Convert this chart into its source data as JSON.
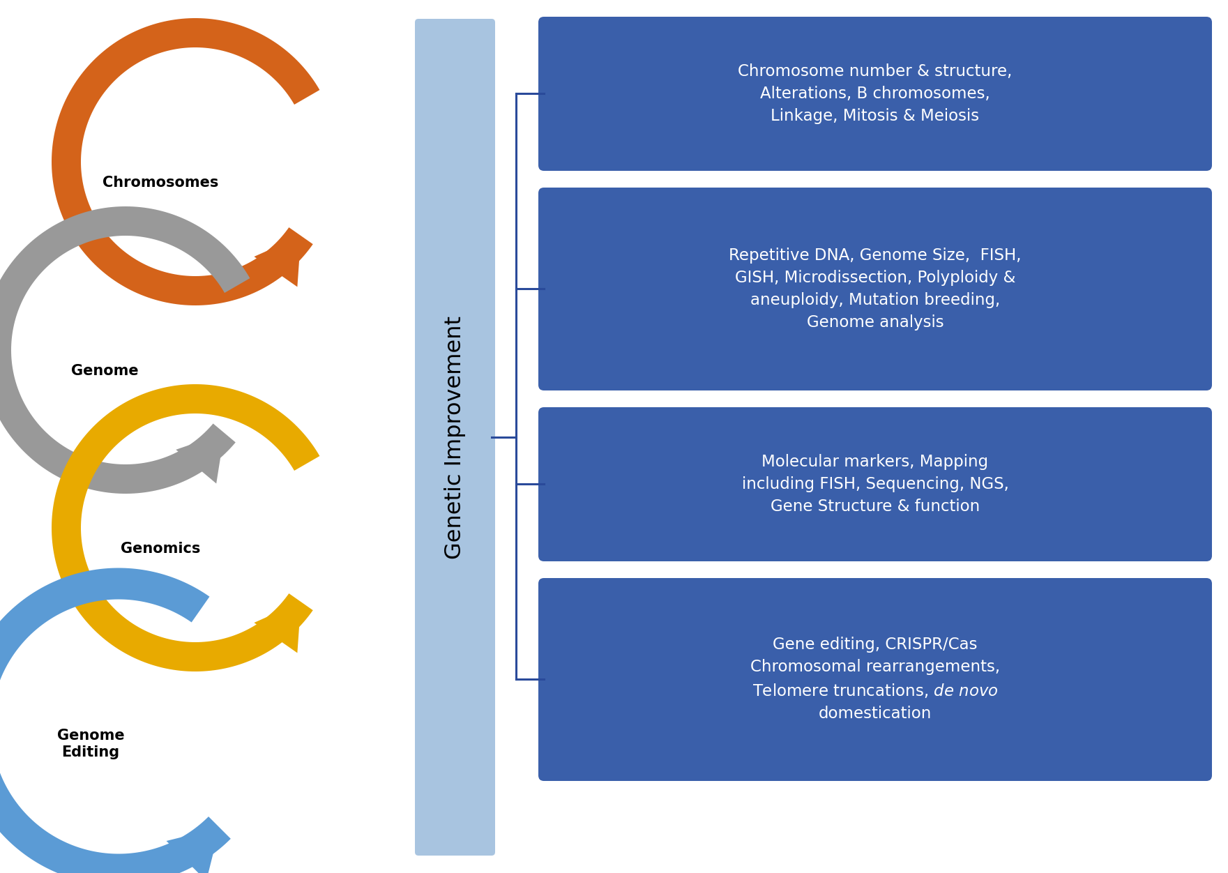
{
  "background_color": "#ffffff",
  "blue_bar_color": "#a8c4e0",
  "box_color": "#3a5faa",
  "box_text_color": "#ffffff",
  "label_text_color": "#000000",
  "circle_colors": [
    "#d4631a",
    "#999999",
    "#e8aa00",
    "#5b9bd5"
  ],
  "circle_labels": [
    "Chromosomes",
    "Genome",
    "Genomics",
    "Genome\nEditing"
  ],
  "genetic_improvement_text": "Genetic Improvement",
  "boxes": [
    "Chromosome number & structure,\nAlterations, B chromosomes,\nLinkage, Mitosis & Meiosis",
    "Repetitive DNA, Genome Size,  FISH,\nGISH, Microdissection, Polyploidy &\naneuploidy, Mutation breeding,\nGenome analysis",
    "Molecular markers, Mapping\nincluding FISH, Sequencing, NGS,\nGene Structure & function",
    "Gene editing, CRISPR/Cas\nChromosomal rearrangements,\nTelomere truncations, de novo\ndomestication"
  ],
  "figsize": [
    17.61,
    12.52
  ],
  "dpi": 100
}
